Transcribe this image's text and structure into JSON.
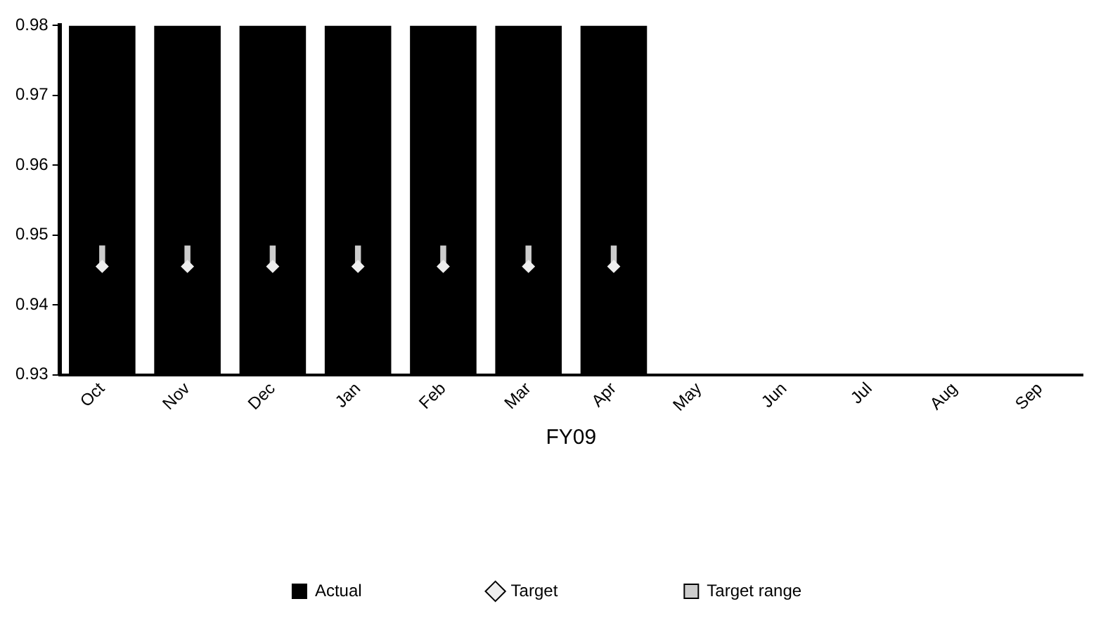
{
  "chart_data": {
    "type": "bar",
    "xlabel": "FY09",
    "categories": [
      "Oct",
      "Nov",
      "Dec",
      "Jan",
      "Feb",
      "Mar",
      "Apr",
      "May",
      "Jun",
      "Jul",
      "Aug",
      "Sep"
    ],
    "series": [
      {
        "name": "Actual",
        "color": "#000000",
        "values": [
          0.98,
          0.98,
          0.98,
          0.98,
          0.98,
          0.98,
          0.98,
          null,
          null,
          null,
          null,
          null
        ]
      },
      {
        "name": "Target",
        "type": "scatter",
        "color": "#eeeeee",
        "values": [
          0.9455,
          0.9455,
          0.9455,
          0.9455,
          0.9455,
          0.9455,
          0.9455,
          null,
          null,
          null,
          null,
          null
        ]
      },
      {
        "name": "Target range",
        "type": "bar",
        "color": "#cccccc",
        "base": [
          0.9455,
          0.9455,
          0.9455,
          0.9455,
          0.9455,
          0.9455,
          0.9455,
          null,
          null,
          null,
          null,
          null
        ],
        "values": [
          0.003,
          0.003,
          0.003,
          0.003,
          0.003,
          0.003,
          0.003,
          null,
          null,
          null,
          null,
          null
        ]
      }
    ],
    "ylim": [
      0.93,
      0.98
    ],
    "yticks": [
      0.93,
      0.94,
      0.95,
      0.96,
      0.97,
      0.98
    ],
    "grid": false,
    "legend": "bottom",
    "marker": "diamond"
  }
}
